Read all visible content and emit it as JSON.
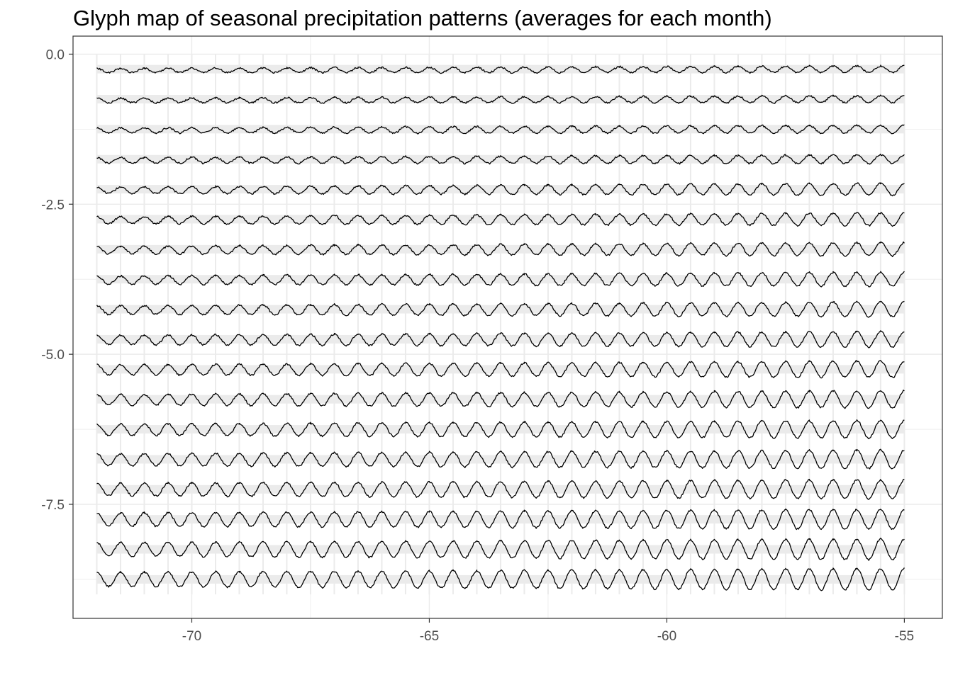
{
  "chart_data": {
    "type": "line",
    "title": "Glyph map of seasonal precipitation patterns (averages for each month)",
    "xlabel": "",
    "ylabel": "",
    "xlim": [
      -72.5,
      -54.2
    ],
    "ylim": [
      -9.4,
      0.3
    ],
    "x_ticks": [
      -70,
      -65,
      -60,
      -55
    ],
    "x_tick_labels": [
      "-70",
      "-65",
      "-60",
      "-55"
    ],
    "y_ticks": [
      0,
      -2.5,
      -5,
      -7.5
    ],
    "y_tick_labels": [
      "0.0",
      "-2.5",
      "-5.0",
      "-7.5"
    ],
    "grid": true,
    "legend": "none",
    "glyph_grid": {
      "longitude": [
        -71.75,
        -71.25,
        -70.75,
        -70.25,
        -69.75,
        -69.25,
        -68.75,
        -68.25,
        -67.75,
        -67.25,
        -66.75,
        -66.25,
        -65.75,
        -65.25,
        -64.75,
        -64.25,
        -63.75,
        -63.25,
        -62.75,
        -62.25,
        -61.75,
        -61.25,
        -60.75,
        -60.25,
        -59.75,
        -59.25,
        -58.75,
        -58.25,
        -57.75,
        -57.25,
        -56.75,
        -56.25,
        -55.75,
        -55.25
      ],
      "latitude": [
        -0.25,
        -0.75,
        -1.25,
        -1.75,
        -2.25,
        -2.75,
        -3.25,
        -3.75,
        -4.25,
        -4.75,
        -5.25,
        -5.75,
        -6.25,
        -6.75,
        -7.25,
        -7.75,
        -8.25,
        -8.75
      ],
      "glyph_width_deg": 0.5,
      "glyph_height_deg": 0.5,
      "months_per_glyph": 12
    }
  },
  "colors": {
    "line": "#000000",
    "glyph_band": "#ebebeb",
    "gridline": "#ebebeb",
    "axis": "#333333",
    "tick_text": "#4d4d4d"
  }
}
